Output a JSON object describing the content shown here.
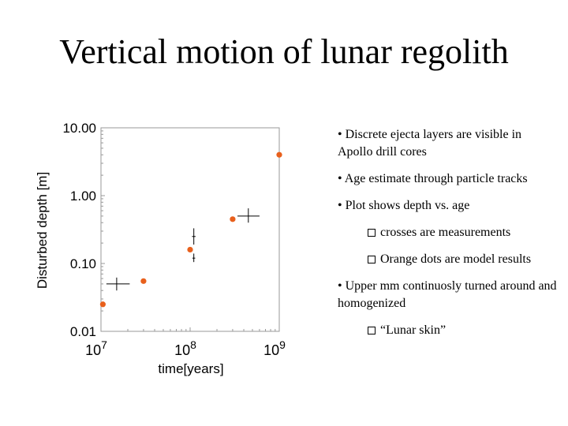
{
  "slide": {
    "title": "Vertical motion of lunar regolith"
  },
  "bullets": [
    {
      "level": 1,
      "text": "• Discrete ejecta layers are visible in Apollo drill cores"
    },
    {
      "level": 1,
      "text": "• Age estimate through particle tracks"
    },
    {
      "level": 1,
      "text": "• Plot shows depth vs. age"
    },
    {
      "level": 2,
      "icon": "checkbox-square-icon",
      "text": "crosses are measurements"
    },
    {
      "level": 2,
      "icon": "checkbox-square-icon",
      "text": "Orange dots are model results"
    },
    {
      "level": 1,
      "text": "• Upper mm continuosly turned around and homogenized"
    },
    {
      "level": 2,
      "icon": "checkbox-square-icon",
      "text": "“Lunar skin”"
    }
  ],
  "chart_data": {
    "type": "scatter",
    "xlabel": "time[years]",
    "ylabel": "Disturbed depth [m]",
    "x_scale": "log",
    "y_scale": "log",
    "xlim": [
      10000000,
      1000000000
    ],
    "ylim": [
      0.01,
      10
    ],
    "x_ticks": [
      {
        "value": 10000000,
        "base": "10",
        "exp": "7"
      },
      {
        "value": 100000000,
        "base": "10",
        "exp": "8"
      },
      {
        "value": 1000000000,
        "base": "10",
        "exp": "9"
      }
    ],
    "y_ticks": [
      {
        "value": 10,
        "label": "10.00"
      },
      {
        "value": 1,
        "label": "1.00"
      },
      {
        "value": 0.1,
        "label": "0.10"
      },
      {
        "value": 0.01,
        "label": "0.01"
      }
    ],
    "series": [
      {
        "marker": "dot",
        "color": "#E8601C",
        "points": [
          {
            "x": 10500000,
            "y": 0.025
          },
          {
            "x": 30000000,
            "y": 0.055
          },
          {
            "x": 100000000,
            "y": 0.16
          },
          {
            "x": 300000000,
            "y": 0.45
          },
          {
            "x": 1000000000,
            "y": 4.0
          }
        ]
      },
      {
        "marker": "cross",
        "color": "#000000",
        "points": [
          {
            "x": 15000000,
            "y": 0.05,
            "x_err": [
              11500000,
              21000000
            ],
            "y_err": [
              0.04,
              0.062
            ]
          },
          {
            "x": 110000000,
            "y": 0.25,
            "x_err": [
              105000000,
              115000000
            ],
            "y_err": [
              0.19,
              0.33
            ]
          },
          {
            "x": 110000000,
            "y": 0.12,
            "x_err": [
              106000000,
              114000000
            ],
            "y_err": [
              0.105,
              0.14
            ]
          },
          {
            "x": 450000000,
            "y": 0.5,
            "x_err": [
              340000000,
              600000000
            ],
            "y_err": [
              0.4,
              0.65
            ]
          }
        ]
      }
    ]
  }
}
